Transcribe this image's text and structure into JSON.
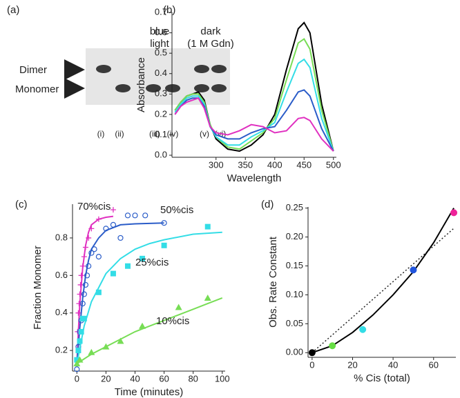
{
  "chart_data": [
    {
      "type": "gel",
      "panel": "(a)",
      "band_labels": [
        "Dimer",
        "Monomer"
      ],
      "groups": [
        [
          "blue",
          "light"
        ],
        [
          "dark",
          "(1 M Gdn)"
        ]
      ],
      "lanes": [
        {
          "label": "(i)",
          "bands": [
            true,
            false
          ]
        },
        {
          "label": "(ii)",
          "bands": [
            false,
            true
          ]
        },
        {
          "label": "(iii)",
          "bands": [
            false,
            true
          ]
        },
        {
          "label": "(iv)",
          "bands": [
            false,
            true
          ]
        },
        {
          "label": "(v)",
          "bands": [
            true,
            true
          ]
        },
        {
          "label": "(vi)",
          "bands": [
            true,
            true
          ]
        }
      ]
    },
    {
      "type": "line",
      "panel": "(b)",
      "x_label": "Wavelength",
      "y_label": "Absorbance",
      "x": [
        230,
        240,
        250,
        260,
        270,
        280,
        290,
        300,
        320,
        340,
        360,
        380,
        400,
        420,
        440,
        450,
        460,
        480,
        500
      ],
      "series": [
        {
          "color": "#000000",
          "values": [
            0.22,
            0.26,
            0.29,
            0.3,
            0.31,
            0.27,
            0.15,
            0.08,
            0.03,
            0.02,
            0.05,
            0.1,
            0.2,
            0.42,
            0.62,
            0.65,
            0.6,
            0.25,
            0.02
          ]
        },
        {
          "color": "#77dd55",
          "values": [
            0.22,
            0.26,
            0.29,
            0.3,
            0.3,
            0.26,
            0.15,
            0.09,
            0.04,
            0.03,
            0.07,
            0.11,
            0.18,
            0.37,
            0.55,
            0.57,
            0.52,
            0.22,
            0.02
          ]
        },
        {
          "color": "#33dde6",
          "values": [
            0.21,
            0.25,
            0.28,
            0.29,
            0.29,
            0.25,
            0.14,
            0.09,
            0.05,
            0.05,
            0.09,
            0.12,
            0.16,
            0.31,
            0.45,
            0.47,
            0.43,
            0.18,
            0.02
          ]
        },
        {
          "color": "#2a5cc8",
          "values": [
            0.2,
            0.24,
            0.27,
            0.28,
            0.28,
            0.24,
            0.14,
            0.1,
            0.08,
            0.08,
            0.11,
            0.13,
            0.14,
            0.22,
            0.31,
            0.32,
            0.29,
            0.13,
            0.02
          ]
        },
        {
          "color": "#e030c0",
          "values": [
            0.2,
            0.24,
            0.26,
            0.27,
            0.28,
            0.23,
            0.14,
            0.11,
            0.1,
            0.12,
            0.15,
            0.14,
            0.11,
            0.12,
            0.18,
            0.185,
            0.17,
            0.08,
            0.02
          ]
        }
      ],
      "xlim": [
        225,
        505
      ],
      "xticks": [
        300,
        350,
        400,
        450,
        500
      ],
      "ylim": [
        -0.01,
        0.7
      ],
      "yticks": [
        {
          "value": 0,
          "label": "0.0"
        },
        0.1,
        0.2,
        0.3,
        0.4,
        0.5,
        0.6,
        0.7
      ]
    },
    {
      "type": "scatter",
      "panel": "(c)",
      "x_label": "Time (minutes)",
      "y_label": "Fraction Monomer",
      "series": [
        {
          "name": "70%cis",
          "color": "#e030c0",
          "marker": "plus",
          "x": [
            0.5,
            1,
            1.5,
            2,
            2.5,
            3,
            4,
            5,
            6,
            8,
            10,
            15,
            25
          ],
          "values": [
            0.3,
            0.4,
            0.45,
            0.5,
            0.55,
            0.6,
            0.65,
            0.7,
            0.75,
            0.8,
            0.85,
            0.9,
            0.95
          ],
          "fit_x": [
            0,
            1,
            2,
            4,
            6,
            8,
            10,
            15,
            20,
            25
          ],
          "fit_values": [
            0.13,
            0.3,
            0.45,
            0.64,
            0.76,
            0.83,
            0.87,
            0.9,
            0.91,
            0.915
          ]
        },
        {
          "name": "50%cis",
          "color": "#2a5cc8",
          "marker": "circle-open",
          "x": [
            0,
            1,
            2,
            3,
            4,
            5,
            6,
            7,
            8,
            10,
            12,
            15,
            20,
            25,
            30,
            35,
            40,
            47,
            60
          ],
          "values": [
            0.1,
            0.22,
            0.3,
            0.36,
            0.45,
            0.5,
            0.55,
            0.6,
            0.65,
            0.72,
            0.74,
            0.7,
            0.85,
            0.87,
            0.8,
            0.92,
            0.92,
            0.92,
            0.88
          ],
          "fit_x": [
            0,
            2,
            4,
            6,
            8,
            10,
            15,
            20,
            30,
            40,
            60
          ],
          "fit_values": [
            0.13,
            0.32,
            0.48,
            0.6,
            0.68,
            0.74,
            0.8,
            0.84,
            0.87,
            0.875,
            0.88
          ]
        },
        {
          "name": "25%cis",
          "color": "#33dde6",
          "marker": "square",
          "x": [
            0,
            1,
            2,
            3,
            4,
            5,
            15,
            25,
            35,
            45,
            60,
            90
          ],
          "values": [
            0.15,
            0.2,
            0.25,
            0.3,
            0.37,
            0.37,
            0.51,
            0.61,
            0.65,
            0.69,
            0.76,
            0.86
          ],
          "fit_x": [
            0,
            5,
            10,
            20,
            30,
            40,
            50,
            60,
            80,
            100
          ],
          "fit_values": [
            0.13,
            0.33,
            0.46,
            0.61,
            0.69,
            0.74,
            0.77,
            0.79,
            0.82,
            0.83
          ]
        },
        {
          "name": "10%cis",
          "color": "#77dd55",
          "marker": "triangle",
          "x": [
            0,
            2,
            10,
            20,
            30,
            45,
            70,
            90
          ],
          "values": [
            0.13,
            0.15,
            0.19,
            0.22,
            0.25,
            0.33,
            0.43,
            0.48
          ],
          "fit_x": [
            0,
            10,
            20,
            30,
            40,
            50,
            60,
            70,
            80,
            90,
            100
          ],
          "fit_values": [
            0.13,
            0.18,
            0.22,
            0.26,
            0.3,
            0.33,
            0.36,
            0.39,
            0.42,
            0.45,
            0.48
          ]
        }
      ],
      "xlim": [
        -3,
        102
      ],
      "xticks": [
        0,
        20,
        40,
        60,
        80,
        100
      ],
      "ylim": [
        0.09,
        0.98
      ],
      "yticks": [
        0.2,
        0.4,
        0.6,
        0.8
      ]
    },
    {
      "type": "rate",
      "panel": "(d)",
      "x_label": "% Cis (total)",
      "y_label": "Obs. Rate Constant",
      "x": [
        0,
        10,
        25,
        50,
        70
      ],
      "values": [
        0,
        0.012,
        0.04,
        0.143,
        0.242
      ],
      "colors": [
        "#000000",
        "#66dd44",
        "#33dde6",
        "#2255dd",
        "#ee2299"
      ],
      "fit_x": [
        0,
        10,
        20,
        30,
        40,
        50,
        60,
        70
      ],
      "fit_values": [
        0,
        0.012,
        0.035,
        0.065,
        0.1,
        0.14,
        0.19,
        0.25
      ],
      "linear_x": [
        0,
        70
      ],
      "linear_values": [
        0,
        0.215
      ],
      "xlim": [
        -2,
        71
      ],
      "xticks": [
        0,
        20,
        40,
        60
      ],
      "ylim": [
        -0.008,
        0.252
      ],
      "yticks": [
        {
          "value": 0,
          "label": "0.00"
        },
        0.05,
        {
          "value": 0.1,
          "label": "0.10"
        },
        0.15,
        {
          "value": 0.2,
          "label": "0.20"
        },
        0.25
      ]
    }
  ]
}
